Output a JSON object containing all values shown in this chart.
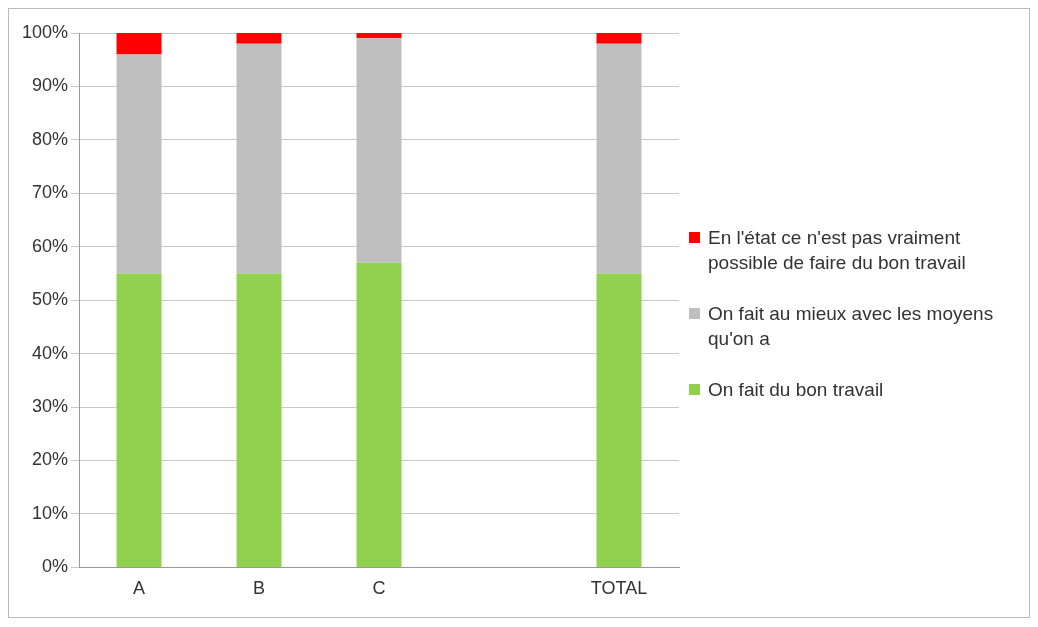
{
  "chart_data": {
    "type": "bar",
    "stacked": true,
    "categories": [
      "A",
      "B",
      "C",
      null,
      "TOTAL"
    ],
    "series": [
      {
        "name": "On fait du bon travail",
        "color": "#92d050",
        "values": [
          55,
          55,
          57,
          null,
          55
        ]
      },
      {
        "name": "On fait au mieux avec les moyens qu'on a",
        "color": "#bfbfbf",
        "values": [
          41,
          43,
          42,
          null,
          43
        ]
      },
      {
        "name": "En l'état ce n'est pas vraiment possible de faire du bon travail",
        "color": "#ff0000",
        "values": [
          4,
          2,
          1,
          null,
          2
        ]
      }
    ],
    "ylim": [
      0,
      100
    ],
    "yticks": [
      {
        "value": 0,
        "label": "0%"
      },
      {
        "value": 10,
        "label": "10%"
      },
      {
        "value": 20,
        "label": "20%"
      },
      {
        "value": 30,
        "label": "30%"
      },
      {
        "value": 40,
        "label": "40%"
      },
      {
        "value": 50,
        "label": "50%"
      },
      {
        "value": 60,
        "label": "60%"
      },
      {
        "value": 70,
        "label": "70%"
      },
      {
        "value": 80,
        "label": "80%"
      },
      {
        "value": 90,
        "label": "90%"
      },
      {
        "value": 100,
        "label": "100%"
      }
    ],
    "grid": "y",
    "legend": "right"
  }
}
